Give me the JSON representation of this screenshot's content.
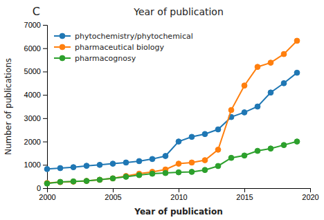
{
  "chart_data": {
    "type": "line",
    "title": "Year of publication",
    "xlabel": "Year of publication",
    "ylabel": "Number of publications",
    "annotations": [
      "C"
    ],
    "x": [
      2000,
      2001,
      2002,
      2003,
      2004,
      2005,
      2006,
      2007,
      2008,
      2009,
      2010,
      2011,
      2012,
      2013,
      2014,
      2015,
      2016,
      2017,
      2018,
      2019
    ],
    "series": [
      {
        "name": "phytochemistry/phytochemical",
        "values": [
          820,
          860,
          900,
          960,
          1000,
          1050,
          1100,
          1160,
          1250,
          1380,
          2000,
          2200,
          2320,
          2520,
          3050,
          3250,
          3500,
          4100,
          4500,
          4950
        ]
      },
      {
        "name": "pharmaceutical biology",
        "values": [
          220,
          260,
          280,
          310,
          360,
          420,
          520,
          620,
          700,
          800,
          1050,
          1100,
          1200,
          1650,
          3350,
          4400,
          5200,
          5380,
          5750,
          6320
        ]
      },
      {
        "name": "pharmacognosy",
        "values": [
          200,
          270,
          290,
          310,
          360,
          420,
          490,
          560,
          620,
          650,
          680,
          700,
          780,
          950,
          1300,
          1400,
          1600,
          1700,
          1850,
          2000
        ]
      }
    ],
    "xlim": [
      2000,
      2020
    ],
    "ylim": [
      0,
      7000
    ],
    "xticks": [
      2000,
      2005,
      2010,
      2015,
      2020
    ],
    "yticks": [
      0,
      1000,
      2000,
      3000,
      4000,
      5000,
      6000,
      7000
    ],
    "marker": "circle",
    "legend": "upper left",
    "grid": false
  }
}
